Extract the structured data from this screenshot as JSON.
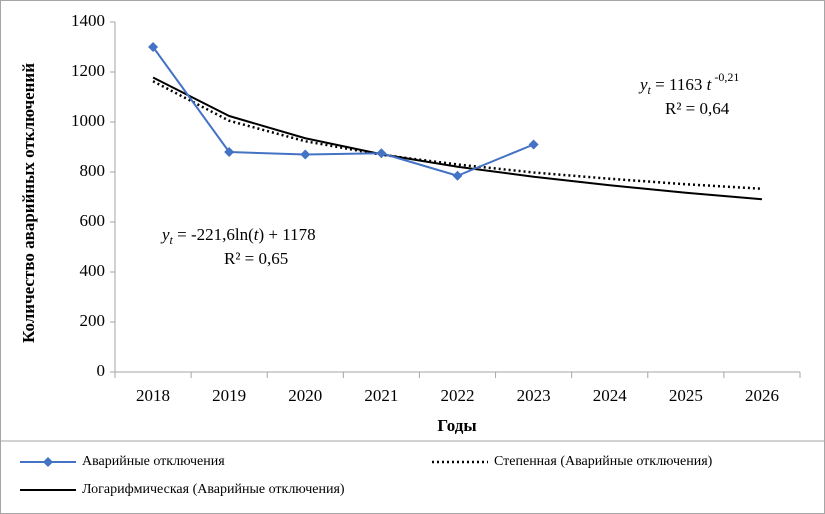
{
  "chart_data": {
    "type": "line",
    "x_label": "Годы",
    "y_label": "Количество аварийных отключений",
    "categories": [
      "2018",
      "2019",
      "2020",
      "2021",
      "2022",
      "2023",
      "2024",
      "2025",
      "2026"
    ],
    "ylim": [
      0,
      1400
    ],
    "yticks": [
      0,
      200,
      400,
      600,
      800,
      1000,
      1200,
      1400
    ],
    "grid": false,
    "legend": "bottom",
    "series": [
      {
        "name": "Аварийные отключения",
        "color": "#4472c4",
        "style": "solid",
        "marker": "diamond",
        "values": [
          1300,
          880,
          870,
          875,
          785,
          910,
          null,
          null,
          null
        ]
      },
      {
        "name": "Степенная (Аварийные отключения)",
        "color": "#000000",
        "style": "dotted",
        "marker": "none",
        "values": [
          1163,
          1005,
          923,
          869,
          830,
          798,
          773,
          751,
          733
        ]
      },
      {
        "name": "Логарифмическая (Аварийные отключения)",
        "color": "#000000",
        "style": "solid",
        "marker": "none",
        "values": [
          1178,
          1024,
          935,
          871,
          821,
          781,
          747,
          717,
          691
        ]
      }
    ],
    "annotations": [
      {
        "y": "y",
        "sub": "t",
        "text": " = 1163 ",
        "t": "t",
        "exp": " -0,21",
        "r2": "R² = 0,64"
      },
      {
        "y": "y",
        "sub": "t",
        "text": " = -221,6ln(",
        "t": "t",
        "end": ") + 1178",
        "r2": "R² = 0,65"
      }
    ]
  }
}
